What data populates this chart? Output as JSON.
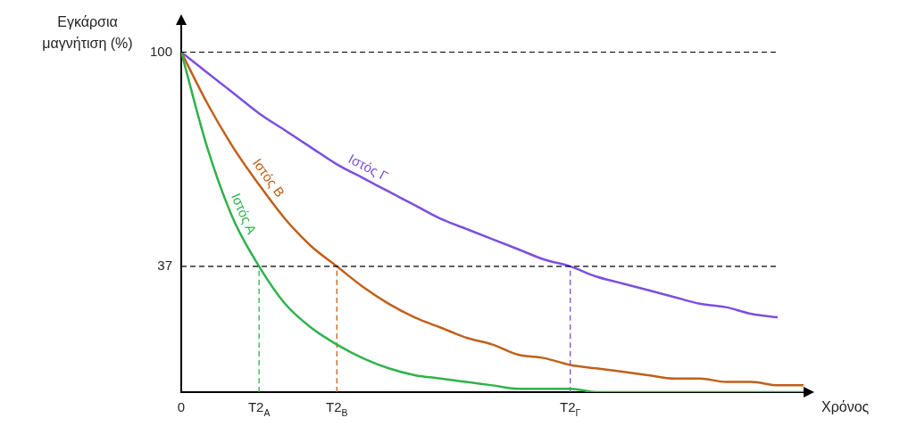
{
  "chart_data": {
    "type": "line",
    "xlabel": "Χρόνος",
    "ylabel": "Εγκάρσια μαγνήτιση (%)",
    "marker": "none",
    "legend": false,
    "grid": false,
    "categories": [
      "0",
      null,
      null,
      "T2$_{Α}$",
      null,
      null,
      "T2$_{Β}$",
      null,
      null,
      null,
      null,
      null,
      null,
      null,
      null,
      "T2$_{Γ}$",
      null,
      null,
      null,
      null,
      null,
      null,
      null,
      null,
      null
    ],
    "ylim": [
      0,
      108
    ],
    "yticks": [
      100,
      37
    ],
    "ref_lines": [
      {
        "axis": "y",
        "value": 100,
        "line_style": "dashed",
        "color": "#000000"
      },
      {
        "axis": "y",
        "value": 37,
        "line_style": "dashed",
        "color": "#000000"
      }
    ],
    "series": [
      {
        "name": "Ιστός Α",
        "color": "#2fb24a",
        "values": [
          100,
          72,
          51,
          37,
          26,
          19,
          14,
          10,
          7,
          5,
          4,
          3,
          2,
          1,
          1,
          1,
          0,
          0,
          0,
          0,
          0,
          0,
          0,
          0,
          0
        ]
      },
      {
        "name": "Ιστός Β",
        "color": "#c0601a",
        "values": [
          100,
          85,
          72,
          61,
          51,
          43,
          37,
          31,
          26,
          22,
          19,
          16,
          14,
          11,
          10,
          8,
          7,
          6,
          5,
          4,
          4,
          3,
          3,
          2,
          2
        ]
      },
      {
        "name": "Ιστός Γ",
        "color": "#7b4fe0",
        "values": [
          100,
          94,
          88,
          82,
          77,
          72,
          67,
          63,
          59,
          55,
          51,
          48,
          45,
          42,
          39,
          37,
          34,
          32,
          30,
          28,
          26,
          25,
          23,
          22,
          null
        ]
      },
      {
        "type": "line",
        "color": "#2fb24a",
        "line_style": "dashed",
        "x": [
          "T2$_{Α}$",
          "T2$_{Α}$"
        ],
        "values": [
          0,
          37
        ]
      },
      {
        "type": "line",
        "color": "#c0601a",
        "line_style": "dashed",
        "x": [
          "T2$_{Β}$",
          "T2$_{Β}$"
        ],
        "values": [
          0,
          37
        ]
      },
      {
        "type": "line",
        "color": "#7b4fe0",
        "line_style": "dashed",
        "x": [
          "T2$_{Γ}$",
          "T2$_{Γ}$"
        ],
        "values": [
          0,
          37
        ]
      }
    ]
  }
}
